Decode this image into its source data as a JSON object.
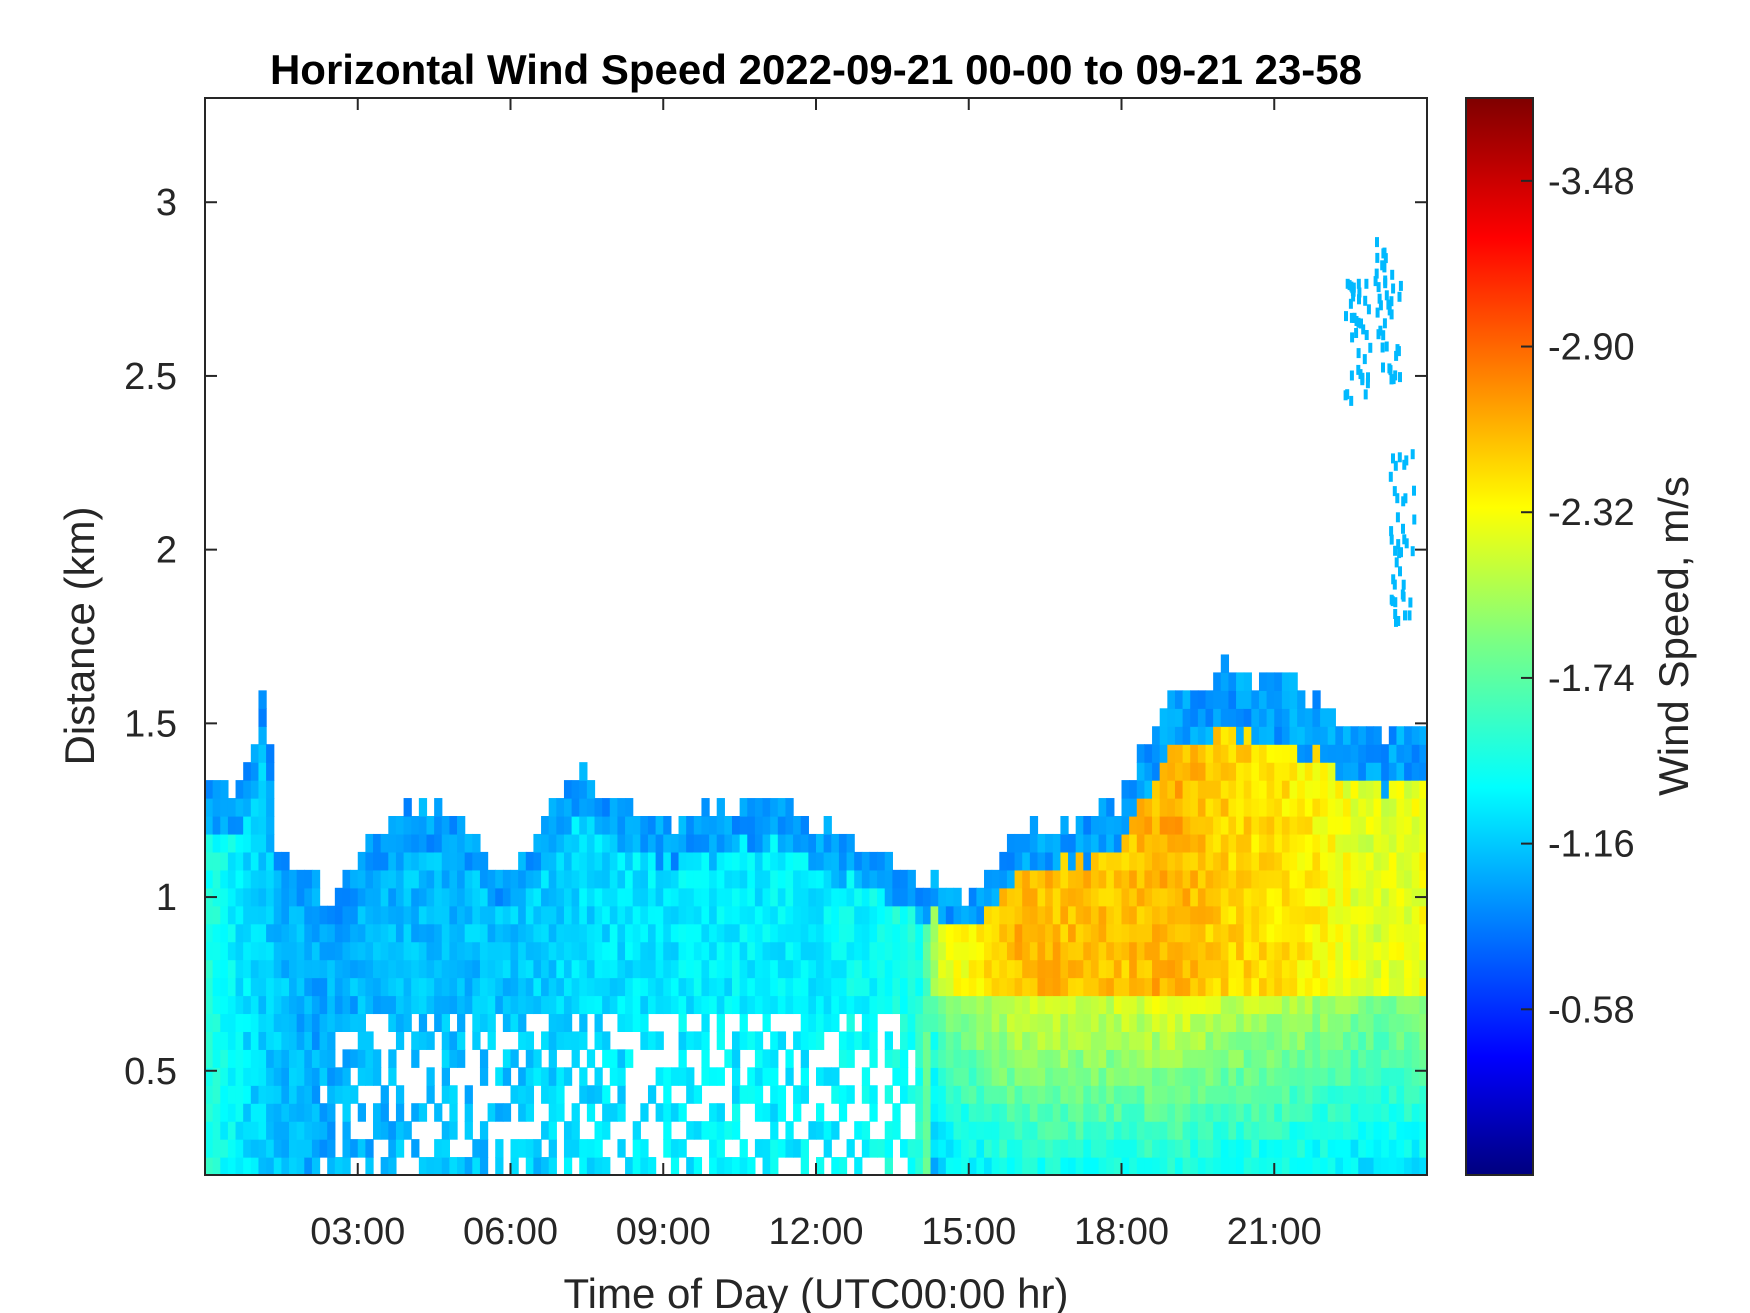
{
  "chart_data": {
    "type": "heatmap",
    "title": "Horizontal Wind Speed 2022-09-21 00-00 to 09-21 23-58",
    "xlabel": "Time of Day (UTC00:00 hr)",
    "ylabel": "Distance (km)",
    "colorbar_label": "Wind Speed, m/s",
    "colormap": "jet",
    "xlim_hours": [
      0,
      24
    ],
    "ylim_km": [
      0.2,
      3.3
    ],
    "x_ticks": [
      {
        "hour": 3,
        "label": "03:00"
      },
      {
        "hour": 6,
        "label": "06:00"
      },
      {
        "hour": 9,
        "label": "09:00"
      },
      {
        "hour": 12,
        "label": "12:00"
      },
      {
        "hour": 15,
        "label": "15:00"
      },
      {
        "hour": 18,
        "label": "18:00"
      },
      {
        "hour": 21,
        "label": "21:00"
      }
    ],
    "y_ticks": [
      {
        "value": 0.5,
        "label": "0.5"
      },
      {
        "value": 1,
        "label": "1"
      },
      {
        "value": 1.5,
        "label": "1.5"
      },
      {
        "value": 2,
        "label": "2"
      },
      {
        "value": 2.5,
        "label": "2.5"
      },
      {
        "value": 3,
        "label": "3"
      }
    ],
    "colorbar_range": [
      0,
      -3.77
    ],
    "colorbar_ticks": [
      {
        "value": -0.58,
        "label": "-0.58"
      },
      {
        "value": -1.16,
        "label": "-1.16"
      },
      {
        "value": -1.74,
        "label": "-1.74"
      },
      {
        "value": -2.32,
        "label": "-2.32"
      },
      {
        "value": -2.9,
        "label": "-2.90"
      },
      {
        "value": -3.48,
        "label": "-3.48"
      }
    ],
    "data_top_km": [
      [
        0.0,
        1.38
      ],
      [
        0.5,
        1.3
      ],
      [
        1.0,
        1.45
      ],
      [
        1.2,
        1.68
      ],
      [
        1.4,
        1.1
      ],
      [
        2.0,
        1.05
      ],
      [
        2.5,
        1.0
      ],
      [
        3.0,
        1.1
      ],
      [
        3.5,
        1.2
      ],
      [
        4.0,
        1.25
      ],
      [
        5.0,
        1.25
      ],
      [
        5.5,
        1.15
      ],
      [
        6.0,
        1.05
      ],
      [
        7.0,
        1.3
      ],
      [
        7.5,
        1.35
      ],
      [
        8.0,
        1.3
      ],
      [
        9.0,
        1.22
      ],
      [
        10.0,
        1.24
      ],
      [
        11.0,
        1.3
      ],
      [
        12.0,
        1.2
      ],
      [
        13.0,
        1.15
      ],
      [
        14.0,
        1.05
      ],
      [
        14.5,
        1.05
      ],
      [
        15.0,
        1.02
      ],
      [
        16.0,
        1.2
      ],
      [
        17.0,
        1.22
      ],
      [
        18.0,
        1.28
      ],
      [
        19.0,
        1.58
      ],
      [
        20.0,
        1.65
      ],
      [
        21.0,
        1.62
      ],
      [
        22.0,
        1.55
      ],
      [
        23.0,
        1.48
      ],
      [
        24.0,
        1.45
      ]
    ],
    "data_speed_ms": [
      [
        0.0,
        -1.5
      ],
      [
        1.0,
        -1.2
      ],
      [
        2.0,
        -1.05
      ],
      [
        4.0,
        -1.1
      ],
      [
        6.0,
        -1.15
      ],
      [
        8.0,
        -1.25
      ],
      [
        10.0,
        -1.3
      ],
      [
        12.0,
        -1.3
      ],
      [
        14.0,
        -1.45
      ],
      [
        14.5,
        -2.2
      ],
      [
        16.0,
        -2.6
      ],
      [
        18.0,
        -2.55
      ],
      [
        19.0,
        -2.65
      ],
      [
        20.0,
        -2.5
      ],
      [
        21.0,
        -2.45
      ],
      [
        22.0,
        -2.35
      ],
      [
        23.0,
        -2.2
      ],
      [
        24.0,
        -2.3
      ]
    ]
  }
}
